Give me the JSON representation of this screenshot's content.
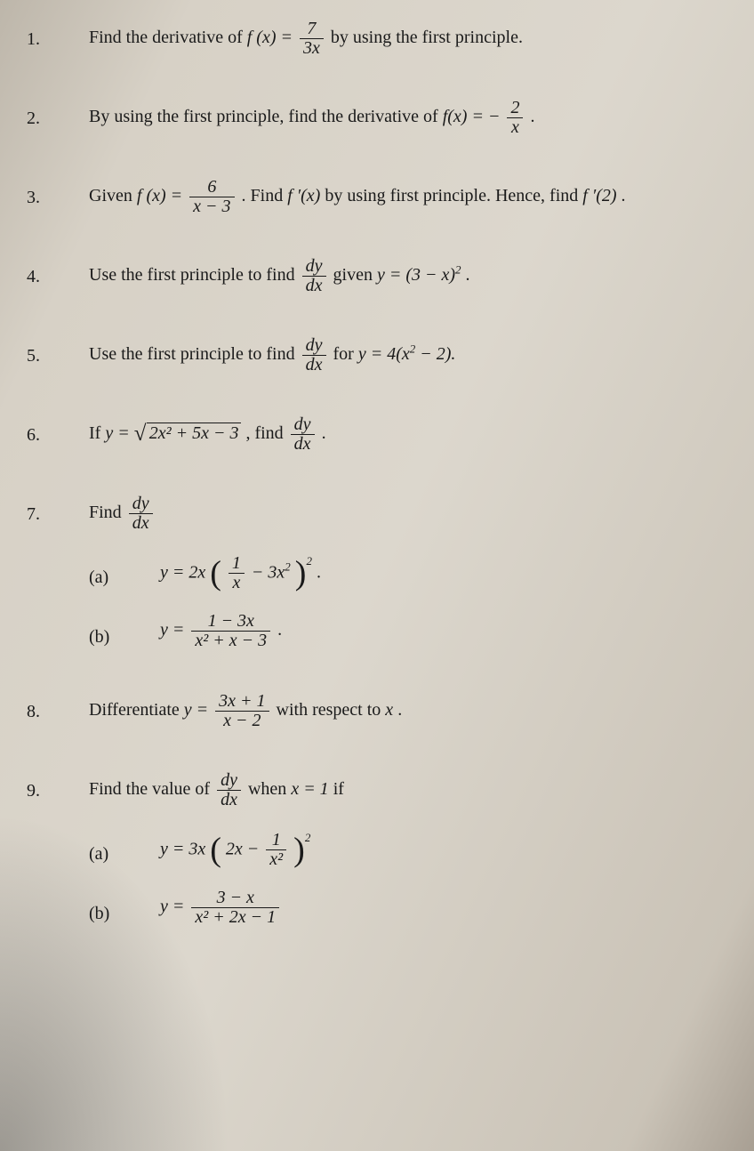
{
  "page": {
    "background_color_approx": "#d5cfc5",
    "text_color": "#1a1a1a",
    "font_family": "Times New Roman",
    "body_fontsize_pt": 15
  },
  "problems": [
    {
      "number": "1.",
      "text_before": "Find the derivative of ",
      "func_lhs": "f (x) =",
      "frac_top": "7",
      "frac_bot": "3x",
      "text_after": " by using the first principle."
    },
    {
      "number": "2.",
      "text_before": "By using the first principle, find the derivative of ",
      "func_lhs": "f(x) = −",
      "frac_top": "2",
      "frac_bot": "x",
      "text_after": "."
    },
    {
      "number": "3.",
      "text_before": "Given ",
      "func_lhs": "f (x) =",
      "frac_top": "6",
      "frac_bot": "x − 3",
      "text_mid": ". Find ",
      "fprime": "f ′(x)",
      "text_mid2": " by using first principle. Hence, find ",
      "fprime_at": "f ′(2)",
      "text_after": "."
    },
    {
      "number": "4.",
      "text_before": "Use the first principle to find ",
      "dy_top": "dy",
      "dy_bot": "dx",
      "text_mid": " given ",
      "rhs_base": "y = (3 − x)",
      "rhs_exp": "2",
      "text_after": " ."
    },
    {
      "number": "5.",
      "text_before": "Use the first principle to find ",
      "dy_top": "dy",
      "dy_bot": "dx",
      "text_mid": " for ",
      "rhs": "y = 4(x",
      "rhs_exp1": "2",
      "rhs_tail": " − 2).",
      "text_after": ""
    },
    {
      "number": "6.",
      "text_before": "If ",
      "y_eq": "y = ",
      "radicand": "2x² + 5x − 3",
      "text_mid": " , find ",
      "dy_top": "dy",
      "dy_bot": "dx",
      "text_after": " ."
    },
    {
      "number": "7.",
      "text_before": "Find ",
      "dy_top": "dy",
      "dy_bot": "dx",
      "subparts": [
        {
          "label": "(a)",
          "lead": "y = 2x",
          "inner_top": "1",
          "inner_bot": "x",
          "inner_tail": " − 3x",
          "inner_exp": "2",
          "outer_exp": "2",
          "tail": " ."
        },
        {
          "label": "(b)",
          "lead": "y = ",
          "frac_top": "1 − 3x",
          "frac_bot": "x² + x − 3",
          "tail": " ."
        }
      ]
    },
    {
      "number": "8.",
      "text_before": "Differentiate ",
      "y_eq": "y = ",
      "frac_top": "3x + 1",
      "frac_bot": "x − 2",
      "text_after": " with respect to ",
      "wrt": "x",
      "period": "."
    },
    {
      "number": "9.",
      "text_before": "Find the value of ",
      "dy_top": "dy",
      "dy_bot": "dx",
      "text_mid": " when ",
      "cond": "x = 1",
      "text_after": " if",
      "subparts": [
        {
          "label": "(a)",
          "lead": "y = 3x",
          "inner_pre": "2x − ",
          "inner_top": "1",
          "inner_bot": "x²",
          "outer_exp": "2"
        },
        {
          "label": "(b)",
          "lead": "y = ",
          "frac_top": "3 − x",
          "frac_bot": "x² + 2x − 1"
        }
      ]
    }
  ]
}
